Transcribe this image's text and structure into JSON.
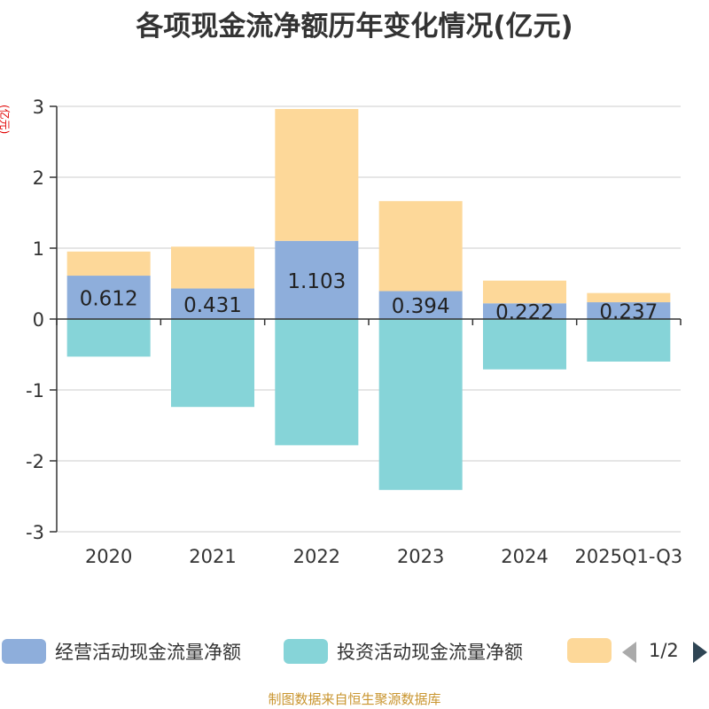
{
  "title": "各项现金流净额历年变化情况(亿元)",
  "unit_label": "(亿元)",
  "footer": "制图数据来自恒生聚源数据库",
  "legend": {
    "items": [
      {
        "label": "经营活动现金流量净额",
        "color": "#8eaedb"
      },
      {
        "label": "投资活动现金流量净额",
        "color": "#86d4d8"
      },
      {
        "label": "",
        "color": "#fdd899"
      }
    ],
    "page": "1/2"
  },
  "chart_data": {
    "type": "bar",
    "stacked": true,
    "categories": [
      "2020",
      "2021",
      "2022",
      "2023",
      "2024",
      "2025Q1-Q3"
    ],
    "ylim": [
      -3,
      3
    ],
    "yticks": [
      -3,
      -2,
      -1,
      0,
      1,
      2,
      3
    ],
    "series": [
      {
        "name": "经营活动现金流量净额",
        "color": "#8eaedb",
        "values": [
          0.612,
          0.431,
          1.103,
          0.394,
          0.222,
          0.237
        ],
        "labels": true
      },
      {
        "name": "投资活动现金流量净额",
        "color": "#86d4d8",
        "values": [
          -0.53,
          -1.24,
          -1.78,
          -2.41,
          -0.71,
          -0.6
        ]
      },
      {
        "name": "",
        "color": "#fdd899",
        "values": [
          0.34,
          0.59,
          1.86,
          1.27,
          0.32,
          0.13
        ]
      }
    ]
  }
}
